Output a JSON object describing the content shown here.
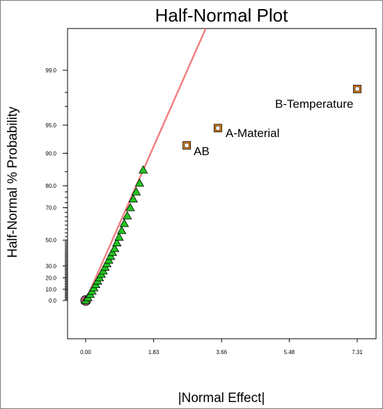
{
  "chart_data": {
    "type": "scatter",
    "title": "Half-Normal Plot",
    "xlabel": "|Normal Effect|",
    "ylabel": "Half-Normal % Probability",
    "x_ticks": [
      "0.00",
      "1.83",
      "3.66",
      "5.48",
      "7.31"
    ],
    "x_tick_values": [
      0.0,
      1.83,
      3.66,
      5.48,
      7.31
    ],
    "y_ticks": [
      {
        "label": "0.0",
        "value": 0.0
      },
      {
        "label": "10.0",
        "value": 10.0
      },
      {
        "label": "20.0",
        "value": 20.0
      },
      {
        "label": "30.0",
        "value": 30.0
      },
      {
        "label": "50.0",
        "value": 50.0
      },
      {
        "label": "70.0",
        "value": 70.0
      },
      {
        "label": "80.0",
        "value": 80.0
      },
      {
        "label": "90.0",
        "value": 90.0
      },
      {
        "label": "95.0",
        "value": 95.0
      },
      {
        "label": "99.0",
        "value": 99.0
      }
    ],
    "xlim": [
      -0.6,
      7.9
    ],
    "scale": "half-normal probability",
    "grid": false,
    "reference_line": {
      "x0": 0.0,
      "p0": 0.0,
      "x1": 1.55,
      "p1": 85.5,
      "color": "#f08080"
    },
    "effects": [
      {
        "label": "B-Temperature",
        "x": 7.31,
        "p": 98.2
      },
      {
        "label": "A-Material",
        "x": 3.56,
        "p": 94.6
      },
      {
        "label": "AB",
        "x": 2.72,
        "p": 91.7
      }
    ],
    "error_estimates": [
      {
        "x": 0.0,
        "p": 0.0
      },
      {
        "x": 0.06,
        "p": 2.5
      },
      {
        "x": 0.12,
        "p": 5.4
      },
      {
        "x": 0.17,
        "p": 8.3
      },
      {
        "x": 0.22,
        "p": 11.2
      },
      {
        "x": 0.27,
        "p": 14.1
      },
      {
        "x": 0.32,
        "p": 17.1
      },
      {
        "x": 0.37,
        "p": 20.0
      },
      {
        "x": 0.42,
        "p": 23.0
      },
      {
        "x": 0.47,
        "p": 25.9
      },
      {
        "x": 0.52,
        "p": 28.9
      },
      {
        "x": 0.57,
        "p": 31.8
      },
      {
        "x": 0.62,
        "p": 34.8
      },
      {
        "x": 0.67,
        "p": 37.8
      },
      {
        "x": 0.72,
        "p": 40.8
      },
      {
        "x": 0.78,
        "p": 43.8
      },
      {
        "x": 0.84,
        "p": 48.0
      },
      {
        "x": 0.9,
        "p": 52.0
      },
      {
        "x": 0.97,
        "p": 56.5
      },
      {
        "x": 1.04,
        "p": 61.0
      },
      {
        "x": 1.12,
        "p": 65.5
      },
      {
        "x": 1.2,
        "p": 70.0
      },
      {
        "x": 1.28,
        "p": 74.3
      },
      {
        "x": 1.36,
        "p": 77.5
      },
      {
        "x": 1.45,
        "p": 81.0
      },
      {
        "x": 1.55,
        "p": 85.5
      }
    ],
    "colors": {
      "effect_fill": "#e07a10",
      "effect_inner": "#ffffff",
      "error_fill": "#22c41f",
      "origin_fill": "#c06080",
      "reference_line": "#f08080"
    }
  }
}
